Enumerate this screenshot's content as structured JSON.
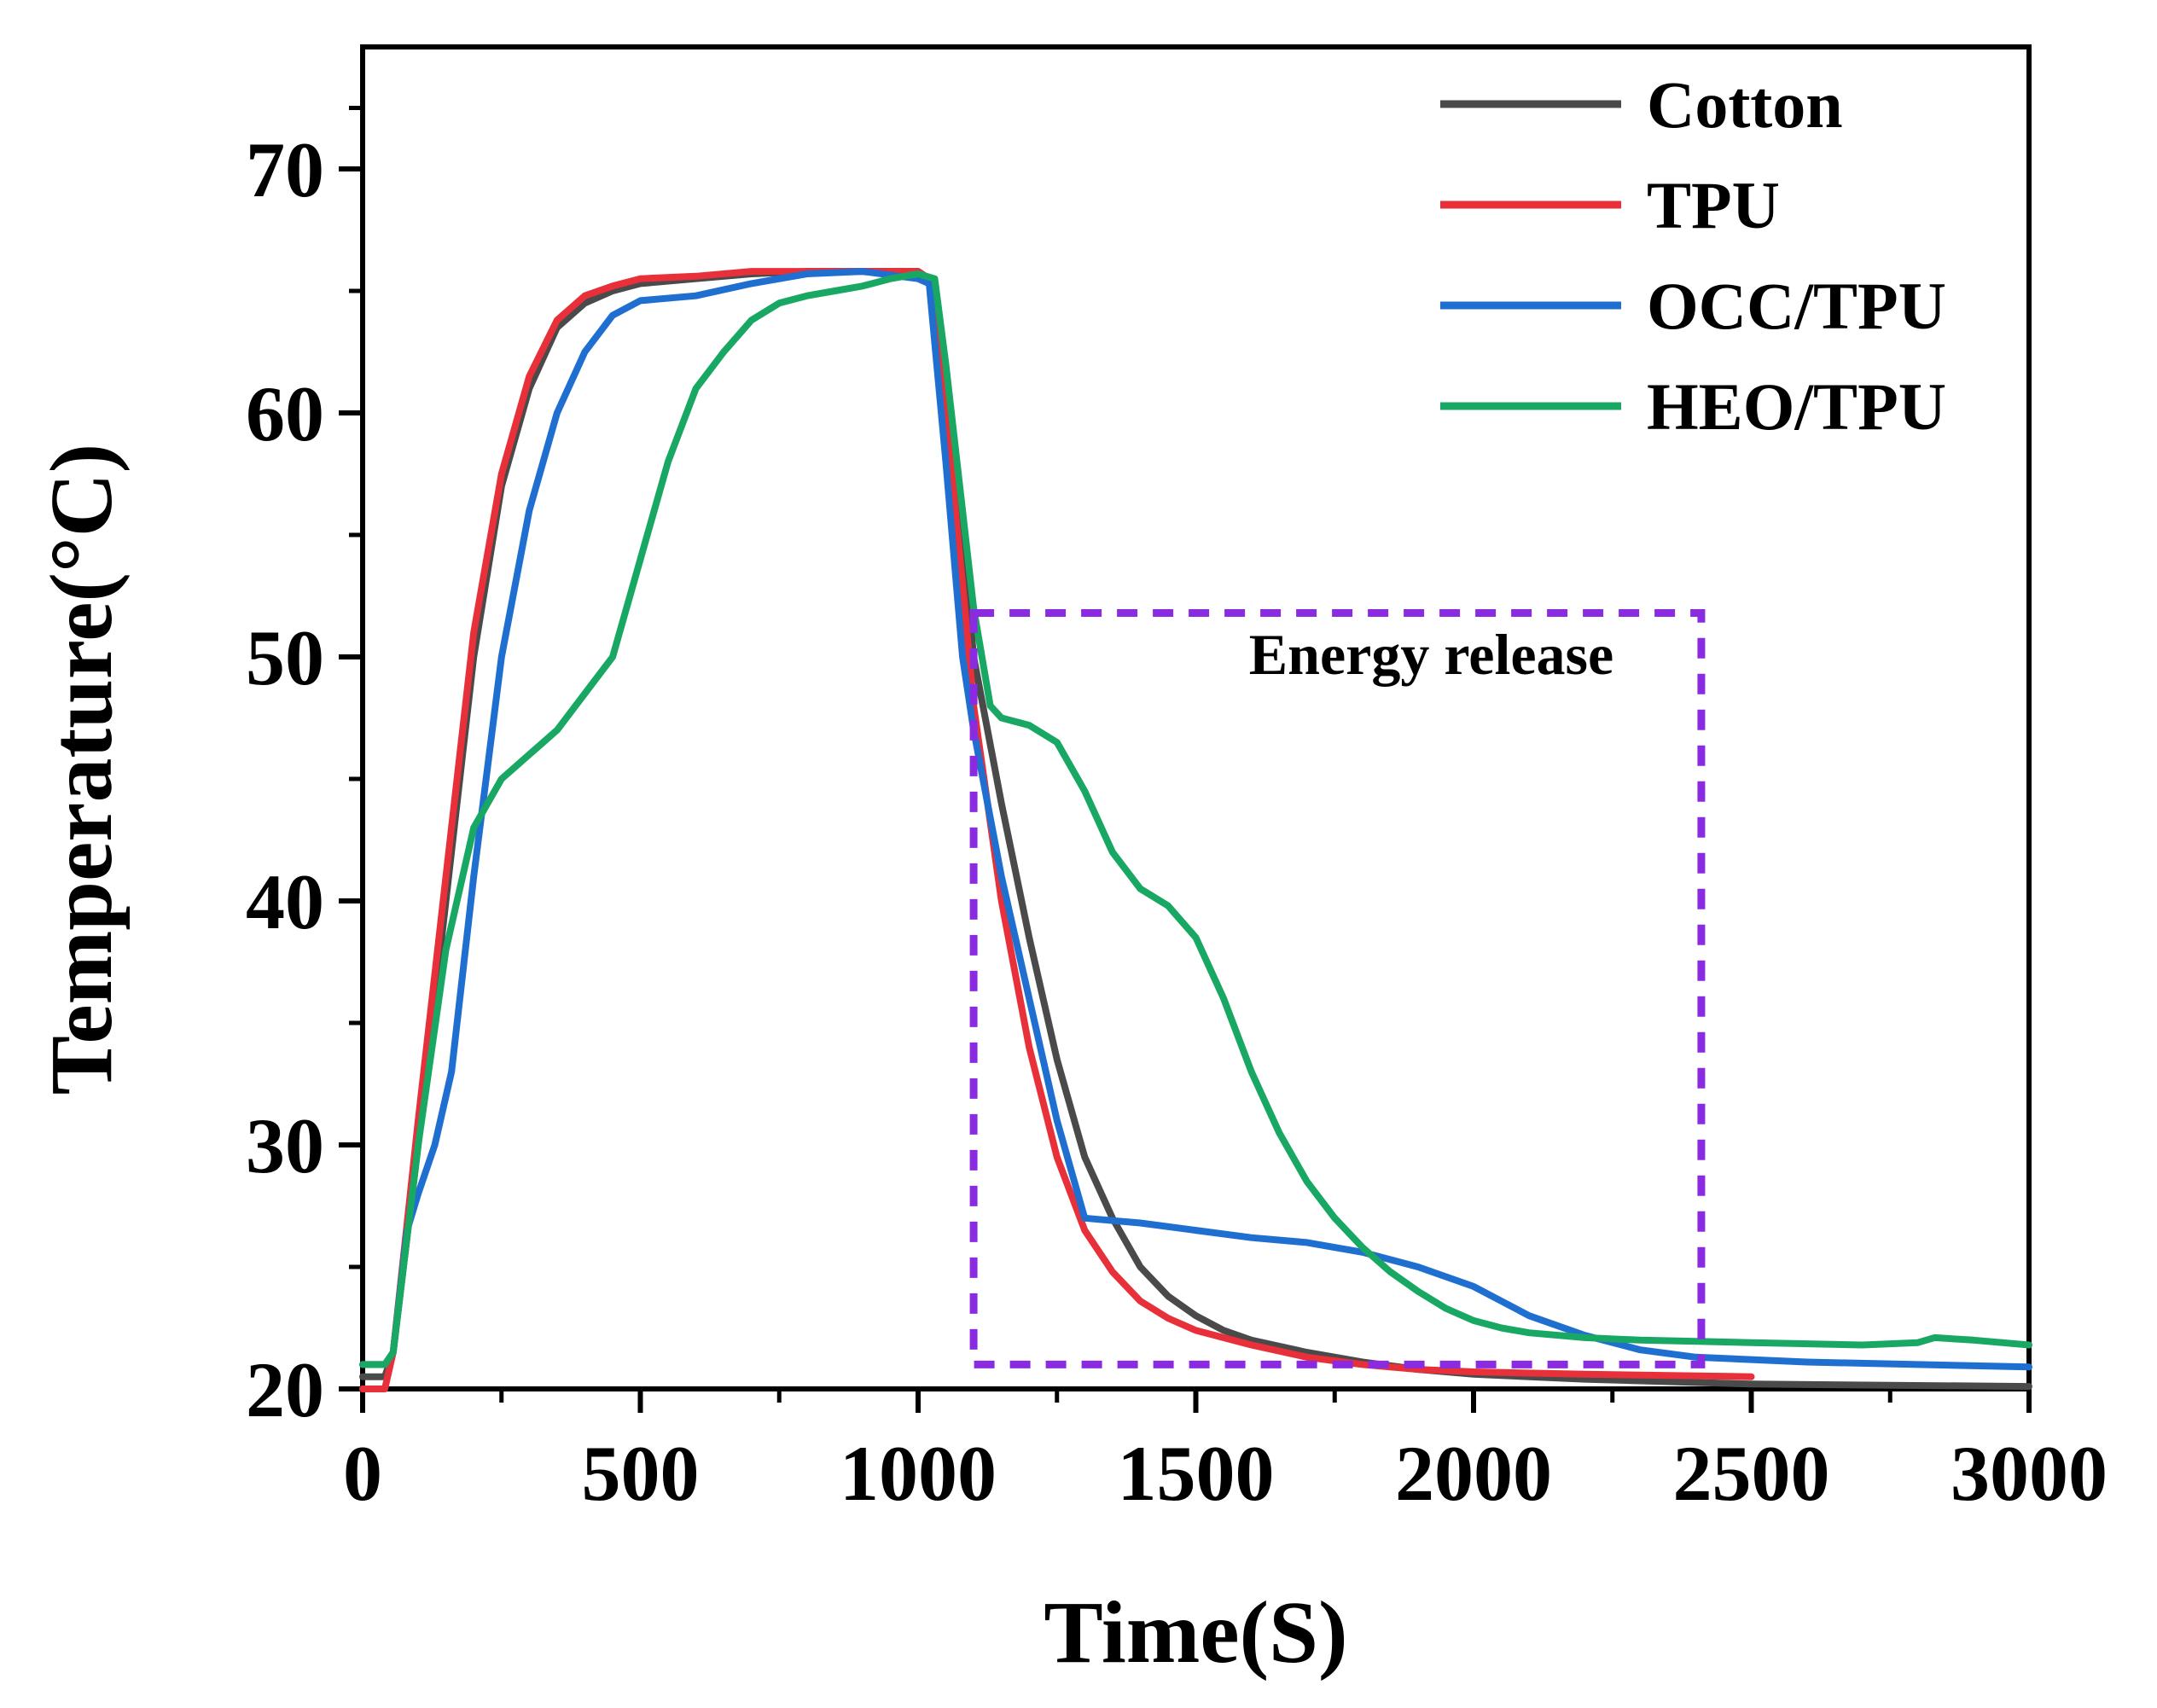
{
  "chart_data": {
    "type": "line",
    "title": "",
    "xlabel": "Time(S)",
    "ylabel": "Temperature(°C)",
    "xlim": [
      0,
      3000
    ],
    "ylim": [
      20,
      75
    ],
    "xticks": [
      0,
      500,
      1000,
      1500,
      2000,
      2500,
      3000
    ],
    "yticks": [
      20,
      30,
      40,
      50,
      60,
      70
    ],
    "xtick_labels": [
      "0",
      "500",
      "1000",
      "1500",
      "2000",
      "2500",
      "3000"
    ],
    "ytick_labels": [
      "20",
      "30",
      "40",
      "50",
      "60",
      "70"
    ],
    "legend_position": "top-right",
    "series": [
      {
        "name": "Cotton",
        "color": "#4a4a4a",
        "points": [
          [
            0,
            20.5
          ],
          [
            40,
            20.5
          ],
          [
            55,
            21.5
          ],
          [
            100,
            30
          ],
          [
            150,
            40
          ],
          [
            200,
            50
          ],
          [
            250,
            57
          ],
          [
            300,
            61
          ],
          [
            350,
            63.5
          ],
          [
            400,
            64.5
          ],
          [
            450,
            65
          ],
          [
            500,
            65.3
          ],
          [
            600,
            65.5
          ],
          [
            700,
            65.7
          ],
          [
            800,
            65.8
          ],
          [
            900,
            65.8
          ],
          [
            1000,
            65.8
          ],
          [
            1020,
            65.5
          ],
          [
            1050,
            60
          ],
          [
            1080,
            55
          ],
          [
            1100,
            50
          ],
          [
            1150,
            44
          ],
          [
            1200,
            38.5
          ],
          [
            1250,
            33.5
          ],
          [
            1300,
            29.5
          ],
          [
            1350,
            27
          ],
          [
            1400,
            25
          ],
          [
            1450,
            23.8
          ],
          [
            1500,
            23
          ],
          [
            1550,
            22.4
          ],
          [
            1600,
            22
          ],
          [
            1700,
            21.5
          ],
          [
            1800,
            21.1
          ],
          [
            1900,
            20.8
          ],
          [
            2000,
            20.6
          ],
          [
            2200,
            20.4
          ],
          [
            2500,
            20.2
          ],
          [
            3000,
            20.1
          ]
        ]
      },
      {
        "name": "TPU",
        "color": "#e8303a",
        "points": [
          [
            0,
            20
          ],
          [
            40,
            20
          ],
          [
            55,
            21.5
          ],
          [
            100,
            31
          ],
          [
            150,
            41
          ],
          [
            200,
            51
          ],
          [
            250,
            57.5
          ],
          [
            300,
            61.5
          ],
          [
            350,
            63.8
          ],
          [
            400,
            64.8
          ],
          [
            450,
            65.2
          ],
          [
            500,
            65.5
          ],
          [
            600,
            65.6
          ],
          [
            700,
            65.8
          ],
          [
            800,
            65.8
          ],
          [
            900,
            65.8
          ],
          [
            1000,
            65.8
          ],
          [
            1020,
            65.5
          ],
          [
            1050,
            60
          ],
          [
            1080,
            53
          ],
          [
            1100,
            48
          ],
          [
            1150,
            40
          ],
          [
            1200,
            34
          ],
          [
            1250,
            29.5
          ],
          [
            1300,
            26.5
          ],
          [
            1350,
            24.8
          ],
          [
            1400,
            23.6
          ],
          [
            1450,
            22.9
          ],
          [
            1500,
            22.4
          ],
          [
            1600,
            21.8
          ],
          [
            1700,
            21.3
          ],
          [
            1800,
            21
          ],
          [
            1900,
            20.8
          ],
          [
            2000,
            20.7
          ],
          [
            2200,
            20.6
          ],
          [
            2500,
            20.5
          ]
        ]
      },
      {
        "name": "OCC/TPU",
        "color": "#1f6fd1",
        "points": [
          [
            0,
            21
          ],
          [
            40,
            21
          ],
          [
            55,
            21.5
          ],
          [
            80,
            26.5
          ],
          [
            100,
            28
          ],
          [
            130,
            30
          ],
          [
            160,
            33
          ],
          [
            200,
            41
          ],
          [
            250,
            50
          ],
          [
            300,
            56
          ],
          [
            350,
            60
          ],
          [
            400,
            62.5
          ],
          [
            450,
            64
          ],
          [
            500,
            64.6
          ],
          [
            600,
            64.8
          ],
          [
            700,
            65.3
          ],
          [
            800,
            65.7
          ],
          [
            900,
            65.8
          ],
          [
            1000,
            65.5
          ],
          [
            1020,
            65.3
          ],
          [
            1050,
            58
          ],
          [
            1080,
            50
          ],
          [
            1100,
            47
          ],
          [
            1150,
            41
          ],
          [
            1200,
            36
          ],
          [
            1250,
            31
          ],
          [
            1300,
            27
          ],
          [
            1350,
            26.9
          ],
          [
            1400,
            26.8
          ],
          [
            1500,
            26.5
          ],
          [
            1600,
            26.2
          ],
          [
            1700,
            26
          ],
          [
            1800,
            25.6
          ],
          [
            1900,
            25
          ],
          [
            2000,
            24.2
          ],
          [
            2050,
            23.6
          ],
          [
            2100,
            23
          ],
          [
            2200,
            22.2
          ],
          [
            2300,
            21.6
          ],
          [
            2400,
            21.3
          ],
          [
            2600,
            21.1
          ],
          [
            2800,
            21
          ],
          [
            3000,
            20.9
          ]
        ]
      },
      {
        "name": "HEO/TPU",
        "color": "#18a864",
        "points": [
          [
            0,
            21
          ],
          [
            40,
            21
          ],
          [
            55,
            21.5
          ],
          [
            100,
            30
          ],
          [
            150,
            38
          ],
          [
            200,
            43
          ],
          [
            250,
            45
          ],
          [
            300,
            46
          ],
          [
            350,
            47
          ],
          [
            400,
            48.5
          ],
          [
            450,
            50
          ],
          [
            500,
            54
          ],
          [
            550,
            58
          ],
          [
            600,
            61
          ],
          [
            650,
            62.5
          ],
          [
            700,
            63.8
          ],
          [
            750,
            64.5
          ],
          [
            800,
            64.8
          ],
          [
            850,
            65
          ],
          [
            900,
            65.2
          ],
          [
            950,
            65.5
          ],
          [
            1000,
            65.7
          ],
          [
            1030,
            65.5
          ],
          [
            1050,
            62
          ],
          [
            1080,
            56
          ],
          [
            1100,
            52
          ],
          [
            1130,
            48
          ],
          [
            1150,
            47.5
          ],
          [
            1200,
            47.2
          ],
          [
            1250,
            46.5
          ],
          [
            1300,
            44.5
          ],
          [
            1350,
            42
          ],
          [
            1400,
            40.5
          ],
          [
            1450,
            39.8
          ],
          [
            1500,
            38.5
          ],
          [
            1550,
            36
          ],
          [
            1600,
            33
          ],
          [
            1650,
            30.5
          ],
          [
            1700,
            28.5
          ],
          [
            1750,
            27
          ],
          [
            1800,
            25.8
          ],
          [
            1850,
            24.8
          ],
          [
            1900,
            24
          ],
          [
            1950,
            23.3
          ],
          [
            2000,
            22.8
          ],
          [
            2050,
            22.5
          ],
          [
            2100,
            22.3
          ],
          [
            2200,
            22.1
          ],
          [
            2300,
            22
          ],
          [
            2500,
            21.9
          ],
          [
            2700,
            21.8
          ],
          [
            2800,
            21.9
          ],
          [
            2830,
            22.1
          ],
          [
            2900,
            22
          ],
          [
            3000,
            21.8
          ]
        ]
      }
    ],
    "annotations": [
      {
        "type": "dashed-rectangle",
        "color": "#8a2be2",
        "x_range": [
          1100,
          2410
        ],
        "y_range": [
          21,
          51.8
        ],
        "label": "Energy release"
      }
    ]
  }
}
